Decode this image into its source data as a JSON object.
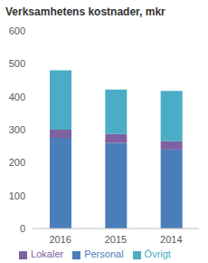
{
  "chart_data": {
    "type": "bar",
    "title": "Verksamhetens kostnader, mkr",
    "categories": [
      "2016",
      "2015",
      "2014"
    ],
    "series": [
      {
        "name": "Personal",
        "color": "#4a7ebb",
        "values": [
          275,
          260,
          240
        ]
      },
      {
        "name": "Lokaler",
        "color": "#7e61a0",
        "values": [
          25,
          27,
          25
        ]
      },
      {
        "name": "Övrigt",
        "color": "#4bacc6",
        "values": [
          180,
          135,
          153
        ]
      }
    ],
    "ylim": [
      0,
      600
    ],
    "yticks": [
      0,
      100,
      200,
      300,
      400,
      500,
      600
    ],
    "stacked": true,
    "grid": false,
    "legend": "bottom"
  }
}
